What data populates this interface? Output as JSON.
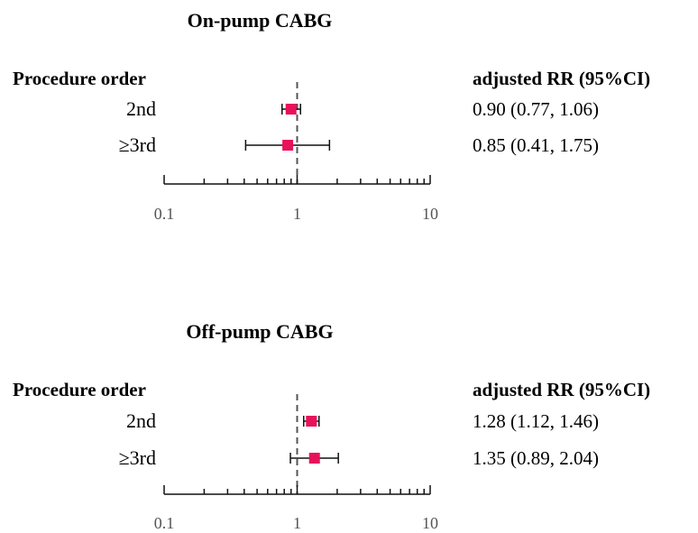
{
  "chart_data": [
    {
      "type": "forest",
      "title": "On-pump CABG",
      "left_header": "Procedure order",
      "right_header": "adjusted RR (95%CI)",
      "x_scale": "log",
      "xlim": [
        0.1,
        10
      ],
      "reference_value": 1,
      "x_tick_labels": [
        {
          "value": 0.1,
          "label": "0.1"
        },
        {
          "value": 1,
          "label": "1"
        },
        {
          "value": 10,
          "label": "10"
        }
      ],
      "rows": [
        {
          "label": "2nd",
          "estimate": 0.9,
          "lower": 0.77,
          "upper": 1.06,
          "rr_text": "0.90 (0.77, 1.06)"
        },
        {
          "label": "≥3rd",
          "estimate": 0.85,
          "lower": 0.41,
          "upper": 1.75,
          "rr_text": "0.85 (0.41, 1.75)"
        }
      ]
    },
    {
      "type": "forest",
      "title": "Off-pump CABG",
      "left_header": "Procedure order",
      "right_header": "adjusted RR (95%CI)",
      "x_scale": "log",
      "xlim": [
        0.1,
        10
      ],
      "reference_value": 1,
      "x_tick_labels": [
        {
          "value": 0.1,
          "label": "0.1"
        },
        {
          "value": 1,
          "label": "1"
        },
        {
          "value": 10,
          "label": "10"
        }
      ],
      "rows": [
        {
          "label": "2nd",
          "estimate": 1.28,
          "lower": 1.12,
          "upper": 1.46,
          "rr_text": "1.28 (1.12, 1.46)"
        },
        {
          "label": "≥3rd",
          "estimate": 1.35,
          "lower": 0.89,
          "upper": 2.04,
          "rr_text": "1.35 (0.89, 2.04)"
        }
      ]
    }
  ],
  "colors": {
    "marker": "#e8115b",
    "line": "#111111",
    "reference_line": "#555555",
    "tick_label": "#555555"
  }
}
